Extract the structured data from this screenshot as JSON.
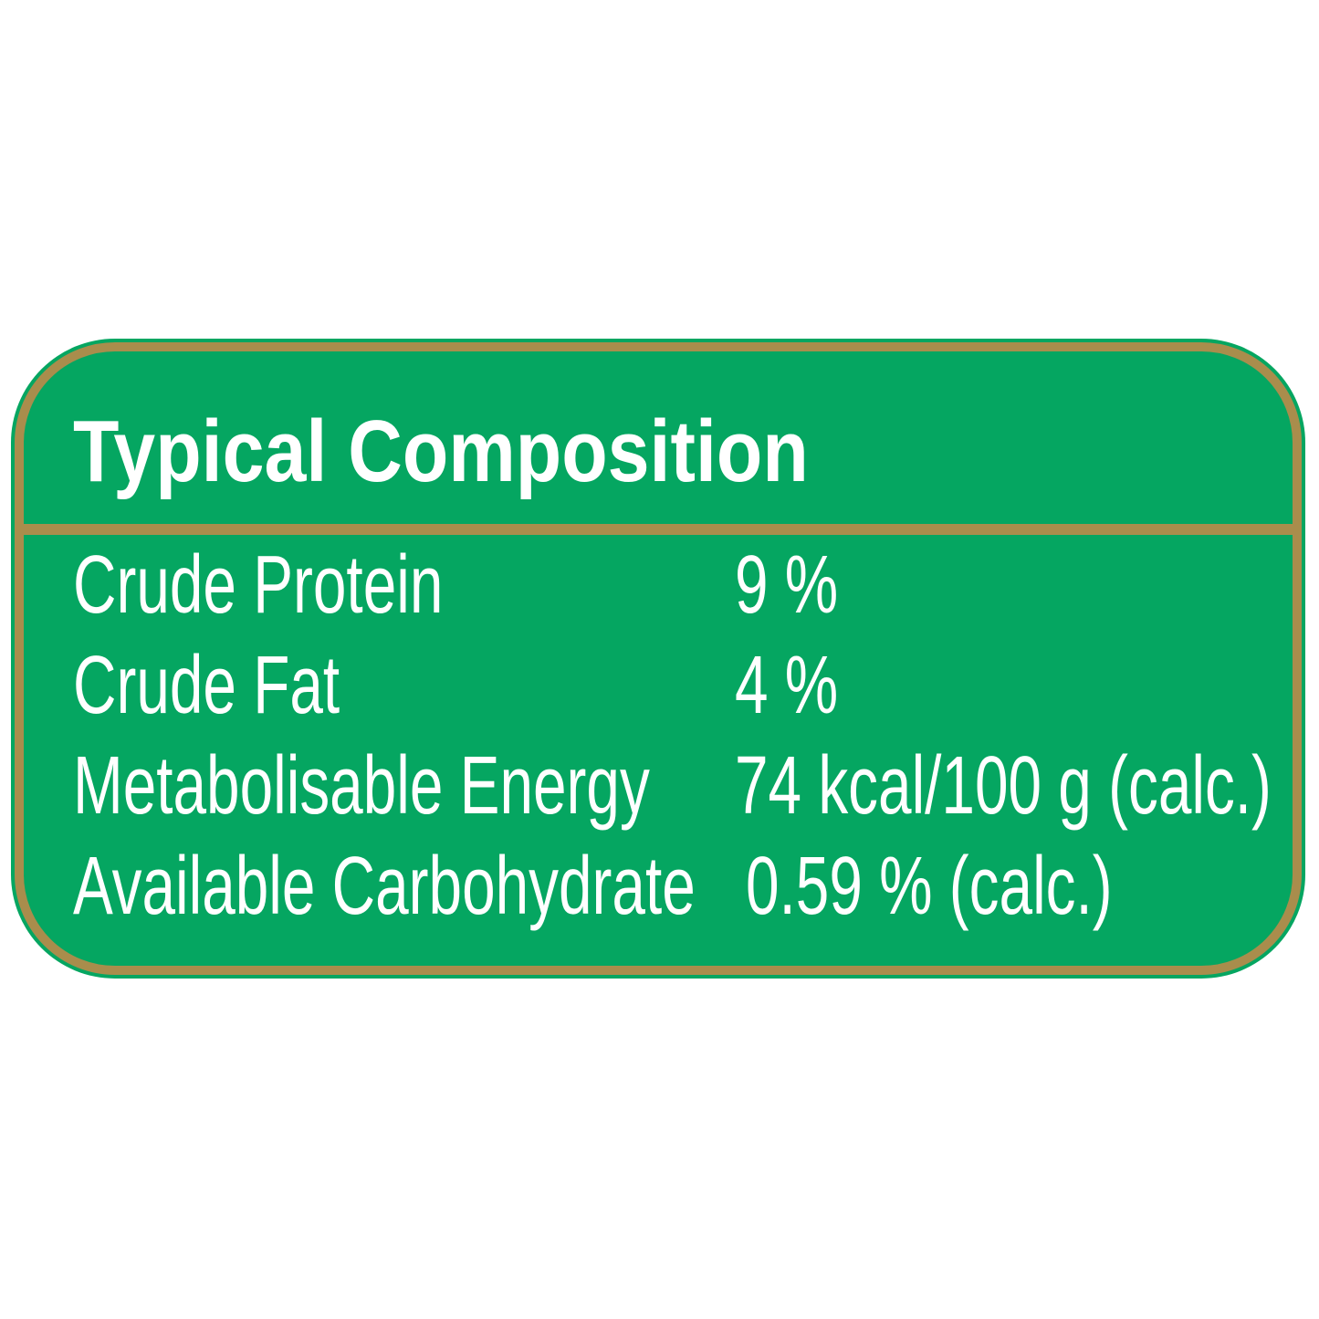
{
  "panel": {
    "title": "Typical Composition",
    "rows": [
      {
        "label": "Crude Protein",
        "value": "9 %"
      },
      {
        "label": "Crude Fat",
        "value": "4 %"
      },
      {
        "label": "Metabolisable Energy",
        "value": "74 kcal/100 g (calc.)"
      },
      {
        "label": "Available Carbohydrate",
        "value": "0.59 % (calc.)"
      }
    ],
    "colors": {
      "panel_green": "#05a661",
      "border_gold": "#a98d4c",
      "text_white": "#ffffff",
      "page_background": "#ffffff"
    }
  }
}
